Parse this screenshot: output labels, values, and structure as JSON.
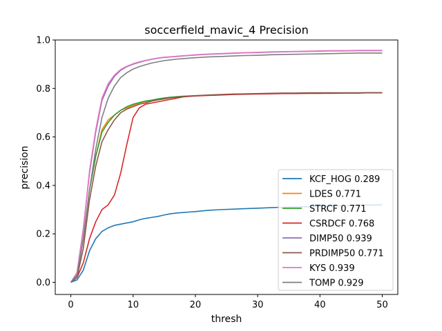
{
  "chart_data": {
    "type": "line",
    "title": "soccerfield_mavic_4 Precision",
    "xlabel": "thresh",
    "ylabel": "precision",
    "xlim": [
      -2.5,
      52.5
    ],
    "ylim": [
      -0.05,
      1.0
    ],
    "xticks": [
      0,
      10,
      20,
      30,
      40,
      50
    ],
    "yticks": [
      0.0,
      0.2,
      0.4,
      0.6,
      0.8,
      1.0
    ],
    "xtick_labels": [
      "0",
      "10",
      "20",
      "30",
      "40",
      "50"
    ],
    "ytick_labels": [
      "0.0",
      "0.2",
      "0.4",
      "0.6",
      "0.8",
      "1.0"
    ],
    "grid": false,
    "legend_position": "lower-right",
    "x": [
      0,
      1,
      2,
      3,
      4,
      5,
      6,
      7,
      8,
      9,
      10,
      11,
      12,
      13,
      14,
      15,
      16,
      17,
      18,
      19,
      20,
      22,
      24,
      26,
      28,
      30,
      32,
      34,
      36,
      38,
      40,
      42,
      44,
      46,
      48,
      50
    ],
    "series": [
      {
        "name": "KCF_HOG 0.289",
        "color": "#1f77b4",
        "values": [
          0.0,
          0.01,
          0.05,
          0.13,
          0.18,
          0.21,
          0.225,
          0.235,
          0.24,
          0.245,
          0.25,
          0.258,
          0.264,
          0.268,
          0.272,
          0.278,
          0.283,
          0.286,
          0.288,
          0.29,
          0.292,
          0.297,
          0.3,
          0.302,
          0.304,
          0.306,
          0.308,
          0.31,
          0.311,
          0.312,
          0.313,
          0.315,
          0.316,
          0.318,
          0.319,
          0.32
        ]
      },
      {
        "name": "LDES 0.771",
        "color": "#ff7f0e",
        "values": [
          0.0,
          0.03,
          0.18,
          0.38,
          0.52,
          0.63,
          0.67,
          0.69,
          0.71,
          0.72,
          0.73,
          0.74,
          0.745,
          0.75,
          0.755,
          0.76,
          0.762,
          0.765,
          0.767,
          0.769,
          0.77,
          0.772,
          0.774,
          0.776,
          0.777,
          0.778,
          0.779,
          0.779,
          0.78,
          0.78,
          0.78,
          0.781,
          0.781,
          0.781,
          0.782,
          0.782
        ]
      },
      {
        "name": "STRCF 0.771",
        "color": "#2ca02c",
        "values": [
          0.0,
          0.03,
          0.18,
          0.38,
          0.52,
          0.62,
          0.66,
          0.69,
          0.71,
          0.725,
          0.735,
          0.742,
          0.748,
          0.752,
          0.757,
          0.761,
          0.764,
          0.766,
          0.768,
          0.769,
          0.77,
          0.772,
          0.774,
          0.776,
          0.777,
          0.778,
          0.779,
          0.779,
          0.78,
          0.78,
          0.78,
          0.781,
          0.781,
          0.781,
          0.782,
          0.782
        ]
      },
      {
        "name": "CSRDCF 0.768",
        "color": "#d62728",
        "values": [
          0.0,
          0.02,
          0.08,
          0.18,
          0.25,
          0.3,
          0.32,
          0.36,
          0.45,
          0.57,
          0.68,
          0.72,
          0.735,
          0.74,
          0.745,
          0.75,
          0.755,
          0.76,
          0.765,
          0.767,
          0.769,
          0.771,
          0.773,
          0.775,
          0.776,
          0.777,
          0.778,
          0.779,
          0.779,
          0.78,
          0.78,
          0.78,
          0.781,
          0.781,
          0.782,
          0.782
        ]
      },
      {
        "name": "DIMP50 0.939",
        "color": "#9467bd",
        "values": [
          0.0,
          0.04,
          0.22,
          0.45,
          0.62,
          0.75,
          0.81,
          0.85,
          0.875,
          0.89,
          0.9,
          0.908,
          0.915,
          0.92,
          0.925,
          0.928,
          0.93,
          0.932,
          0.934,
          0.936,
          0.938,
          0.941,
          0.943,
          0.945,
          0.947,
          0.948,
          0.95,
          0.951,
          0.952,
          0.953,
          0.954,
          0.955,
          0.955,
          0.956,
          0.956,
          0.956
        ]
      },
      {
        "name": "PRDIMP50 0.771",
        "color": "#8c564b",
        "values": [
          0.0,
          0.02,
          0.14,
          0.34,
          0.48,
          0.58,
          0.63,
          0.67,
          0.7,
          0.715,
          0.725,
          0.735,
          0.74,
          0.748,
          0.753,
          0.757,
          0.761,
          0.764,
          0.766,
          0.768,
          0.77,
          0.773,
          0.775,
          0.777,
          0.778,
          0.779,
          0.78,
          0.781,
          0.781,
          0.782,
          0.782,
          0.782,
          0.782,
          0.782,
          0.783,
          0.783
        ]
      },
      {
        "name": "KYS 0.939",
        "color": "#e377c2",
        "values": [
          0.0,
          0.04,
          0.22,
          0.46,
          0.63,
          0.76,
          0.82,
          0.855,
          0.878,
          0.892,
          0.902,
          0.91,
          0.916,
          0.921,
          0.926,
          0.929,
          0.931,
          0.933,
          0.935,
          0.937,
          0.939,
          0.942,
          0.944,
          0.946,
          0.948,
          0.949,
          0.951,
          0.952,
          0.953,
          0.954,
          0.955,
          0.956,
          0.956,
          0.957,
          0.957,
          0.957
        ]
      },
      {
        "name": "TOMP 0.929",
        "color": "#7f7f7f",
        "values": [
          0.0,
          0.03,
          0.18,
          0.38,
          0.55,
          0.68,
          0.76,
          0.81,
          0.845,
          0.865,
          0.88,
          0.89,
          0.898,
          0.905,
          0.91,
          0.915,
          0.918,
          0.921,
          0.923,
          0.925,
          0.927,
          0.93,
          0.932,
          0.934,
          0.936,
          0.937,
          0.939,
          0.94,
          0.941,
          0.942,
          0.943,
          0.944,
          0.945,
          0.946,
          0.946,
          0.946
        ]
      }
    ]
  }
}
